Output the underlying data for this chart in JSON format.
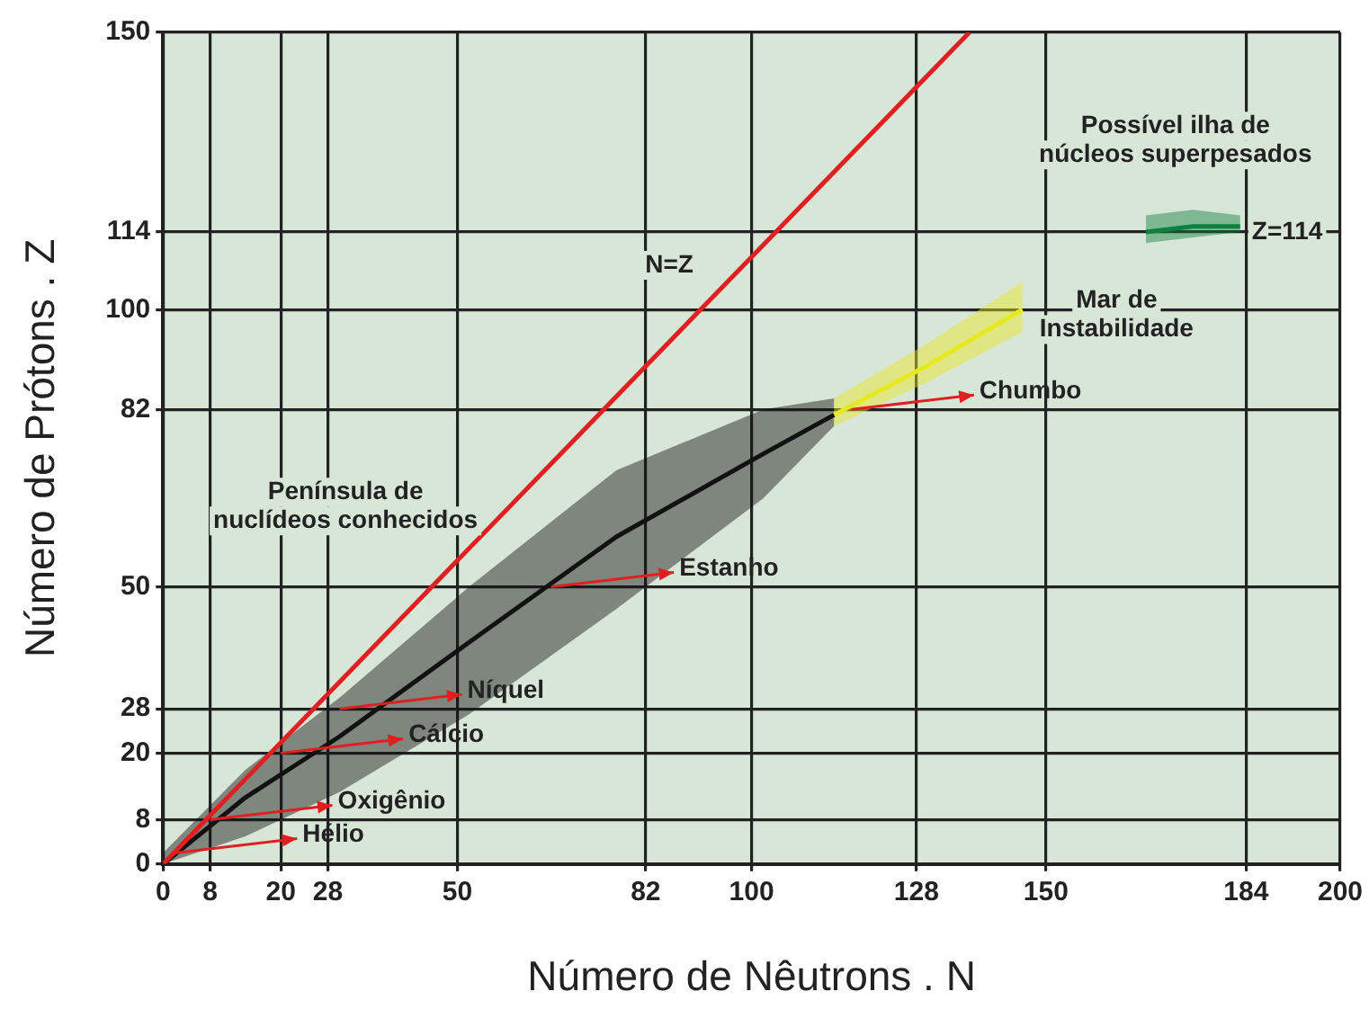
{
  "chart_data": {
    "type": "line",
    "xlabel": "Número de Nêutrons . N",
    "ylabel": "Número de Prótons . Z",
    "xlim": [
      0,
      200
    ],
    "xticks": [
      0,
      8,
      20,
      28,
      50,
      82,
      100,
      128,
      150,
      184,
      200
    ],
    "ylim": [
      0,
      150
    ],
    "yticks": [
      0,
      8,
      20,
      28,
      50,
      82,
      100,
      114,
      150
    ],
    "grid": true,
    "marker": "none",
    "line_style": "solid",
    "series": [
      {
        "color": "#e02020",
        "x": [
          0,
          137
        ],
        "values": [
          0,
          150
        ]
      },
      {
        "color": "#111111",
        "x": [
          0,
          14,
          30,
          52,
          77,
          102,
          114
        ],
        "values": [
          0,
          12,
          23,
          40,
          59,
          74,
          81
        ],
        "lower": [
          0,
          5,
          13,
          27,
          46,
          66,
          79
        ],
        "upper": [
          2,
          17,
          30,
          50,
          71,
          82,
          84
        ]
      },
      {
        "color": "#e8e820",
        "x": [
          114,
          130,
          146
        ],
        "values": [
          81,
          90,
          100
        ],
        "lower": [
          79,
          87,
          96
        ],
        "upper": [
          84,
          94,
          105
        ]
      },
      {
        "color": "#108040",
        "x": [
          167,
          175,
          183
        ],
        "values": [
          114,
          115,
          115
        ],
        "lower": [
          112,
          113,
          114
        ],
        "upper": [
          117,
          118,
          117
        ]
      }
    ],
    "annotations": [
      {
        "text": "Hélio",
        "x": 2,
        "y": 2
      },
      {
        "text": "Oxigênio",
        "x": 8,
        "y": 8
      },
      {
        "text": "Cálcio",
        "x": 20,
        "y": 20
      },
      {
        "text": "Níquel",
        "x": 30,
        "y": 28
      },
      {
        "text": "Estanho",
        "x": 66,
        "y": 50
      },
      {
        "text": "Chumbo",
        "x": 117,
        "y": 82
      },
      "N=Z",
      "Península de\nnuclídeos conhecidos",
      "Mar de\nInstabilidade",
      "Possível ilha de\nnúcleos superpesados",
      "Z=114"
    ]
  }
}
